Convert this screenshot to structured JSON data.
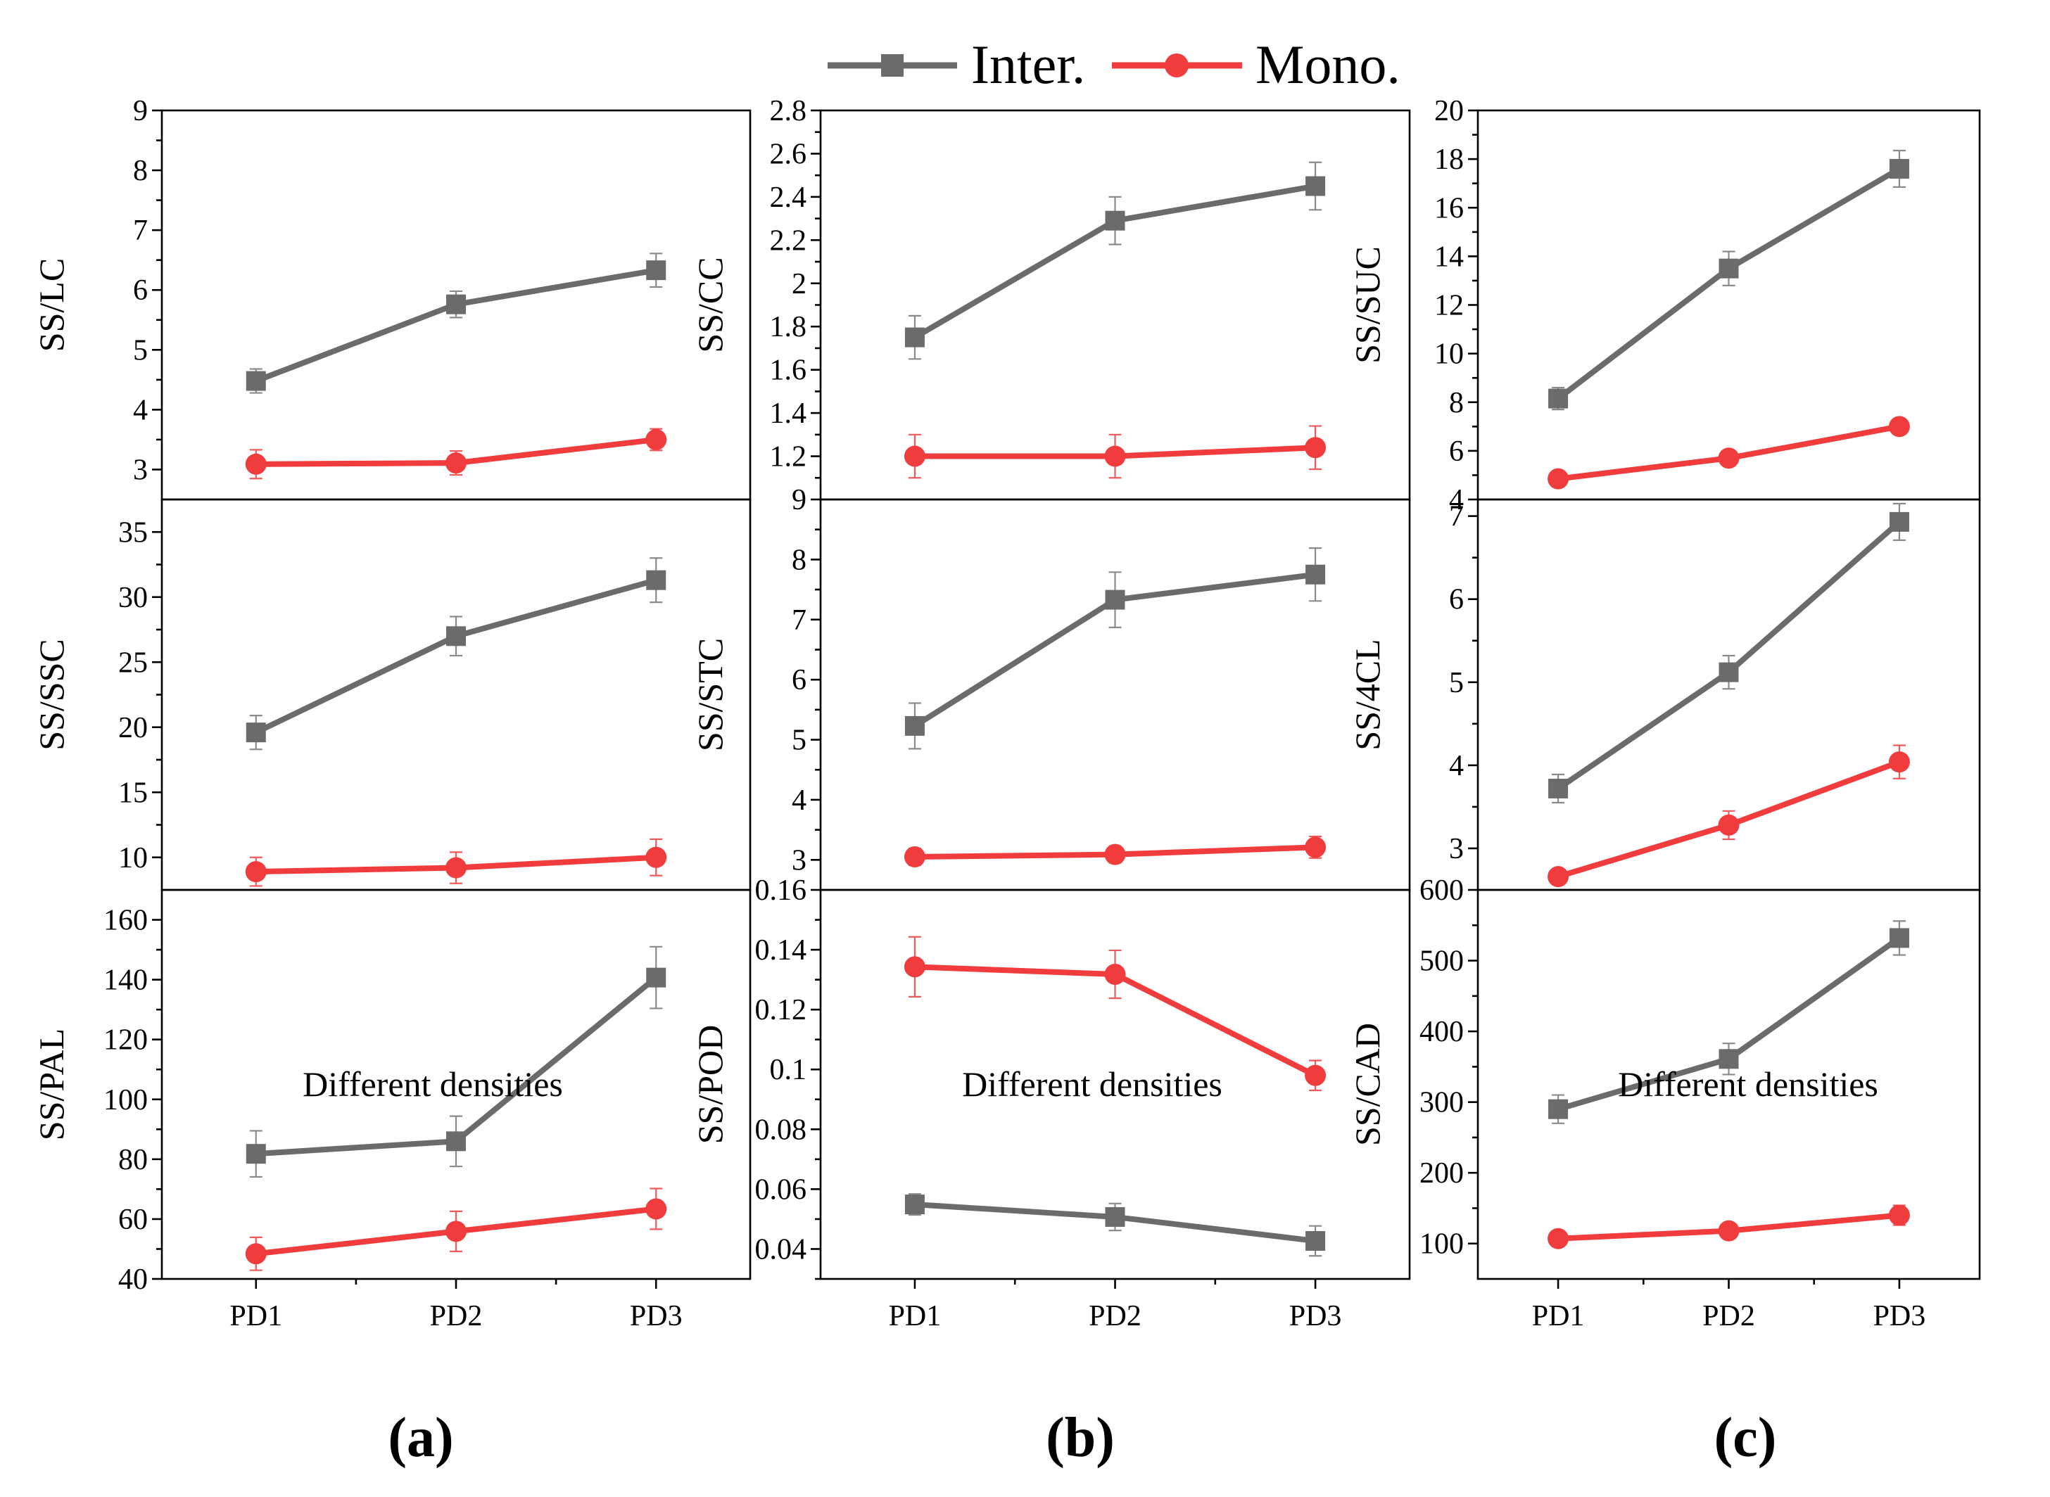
{
  "legend": {
    "series": [
      {
        "name": "Inter.",
        "color": "#6b6b6b",
        "marker": "square"
      },
      {
        "name": "Mono.",
        "color": "#f03c3c",
        "marker": "circle"
      }
    ]
  },
  "panel_labels": [
    "(a)",
    "(b)",
    "(c)"
  ],
  "x_axis_label": "Different densities",
  "chart_data": [
    {
      "type": "line",
      "column": 0,
      "row": 0,
      "ylabel": "SS/LC",
      "ylim": [
        2.5,
        9
      ],
      "yticks": [
        3,
        4,
        5,
        6,
        7,
        8,
        9
      ],
      "tick_labels": [
        "3",
        "4",
        "5",
        "6",
        "7",
        "8",
        "9"
      ],
      "categories": [
        "PD1",
        "PD2",
        "PD3"
      ],
      "series": [
        {
          "name": "Inter.",
          "values": [
            4.48,
            5.76,
            6.33
          ],
          "errors": [
            0.2,
            0.22,
            0.28
          ]
        },
        {
          "name": "Mono.",
          "values": [
            3.09,
            3.11,
            3.5
          ],
          "errors": [
            0.24,
            0.2,
            0.18
          ]
        }
      ]
    },
    {
      "type": "line",
      "column": 0,
      "row": 1,
      "ylabel": "SS/SSC",
      "ylim": [
        7.5,
        37.5
      ],
      "yticks": [
        10,
        15,
        20,
        25,
        30,
        35
      ],
      "tick_labels": [
        "10",
        "15",
        "20",
        "25",
        "30",
        "35"
      ],
      "categories": [
        "PD1",
        "PD2",
        "PD3"
      ],
      "series": [
        {
          "name": "Inter.",
          "values": [
            19.6,
            27.0,
            31.3
          ],
          "errors": [
            1.3,
            1.5,
            1.7
          ]
        },
        {
          "name": "Mono.",
          "values": [
            8.9,
            9.2,
            10.0
          ],
          "errors": [
            1.1,
            1.2,
            1.4
          ]
        }
      ]
    },
    {
      "type": "line",
      "column": 0,
      "row": 2,
      "ylabel": "SS/PAL",
      "ylim": [
        40,
        170
      ],
      "yticks": [
        40,
        60,
        80,
        100,
        120,
        140,
        160
      ],
      "tick_labels": [
        "40",
        "60",
        "80",
        "100",
        "120",
        "140",
        "160"
      ],
      "categories": [
        "PD1",
        "PD2",
        "PD3"
      ],
      "series": [
        {
          "name": "Inter.",
          "values": [
            81.8,
            86.0,
            140.7
          ],
          "errors": [
            7.7,
            8.4,
            10.3
          ]
        },
        {
          "name": "Mono.",
          "values": [
            48.4,
            55.9,
            63.4
          ],
          "errors": [
            5.5,
            6.7,
            6.8
          ]
        }
      ]
    },
    {
      "type": "line",
      "column": 1,
      "row": 0,
      "ylabel": "SS/CC",
      "ylim": [
        1.0,
        2.8
      ],
      "yticks": [
        1.2,
        1.4,
        1.6,
        1.8,
        2.0,
        2.2,
        2.4,
        2.6,
        2.8
      ],
      "tick_labels": [
        "1.2",
        "1.4",
        "1.6",
        "1.8",
        "2",
        "2.2",
        "2.4",
        "2.6",
        "2.8"
      ],
      "categories": [
        "PD1",
        "PD2",
        "PD3"
      ],
      "series": [
        {
          "name": "Inter.",
          "values": [
            1.75,
            2.29,
            2.45
          ],
          "errors": [
            0.1,
            0.11,
            0.11
          ]
        },
        {
          "name": "Mono.",
          "values": [
            1.2,
            1.2,
            1.24
          ],
          "errors": [
            0.1,
            0.1,
            0.1
          ]
        }
      ]
    },
    {
      "type": "line",
      "column": 1,
      "row": 1,
      "ylabel": "SS/STC",
      "ylim": [
        2.5,
        9
      ],
      "yticks": [
        3,
        4,
        5,
        6,
        7,
        8,
        9
      ],
      "tick_labels": [
        "3",
        "4",
        "5",
        "6",
        "7",
        "8",
        "9"
      ],
      "categories": [
        "PD1",
        "PD2",
        "PD3"
      ],
      "series": [
        {
          "name": "Inter.",
          "values": [
            5.23,
            7.33,
            7.75
          ],
          "errors": [
            0.38,
            0.46,
            0.44
          ]
        },
        {
          "name": "Mono.",
          "values": [
            3.05,
            3.09,
            3.21
          ],
          "errors": [
            0.14,
            0.14,
            0.18
          ]
        }
      ]
    },
    {
      "type": "line",
      "column": 1,
      "row": 2,
      "ylabel": "SS/POD",
      "ylim": [
        0.03,
        0.16
      ],
      "yticks": [
        0.04,
        0.06,
        0.08,
        0.1,
        0.12,
        0.14,
        0.16
      ],
      "tick_labels": [
        "0.04",
        "0.06",
        "0.08",
        "0.1",
        "0.12",
        "0.14",
        "0.16"
      ],
      "categories": [
        "PD1",
        "PD2",
        "PD3"
      ],
      "series": [
        {
          "name": "Inter.",
          "values": [
            0.0549,
            0.0507,
            0.0427
          ],
          "errors": [
            0.0035,
            0.0045,
            0.005
          ]
        },
        {
          "name": "Mono.",
          "values": [
            0.1343,
            0.1318,
            0.098
          ],
          "errors": [
            0.01,
            0.008,
            0.005
          ]
        }
      ]
    },
    {
      "type": "line",
      "column": 2,
      "row": 0,
      "ylabel": "SS/SUC",
      "ylim": [
        4,
        20
      ],
      "yticks": [
        4,
        6,
        8,
        10,
        12,
        14,
        16,
        18,
        20
      ],
      "tick_labels": [
        "4",
        "6",
        "8",
        "10",
        "12",
        "14",
        "16",
        "18",
        "20"
      ],
      "categories": [
        "PD1",
        "PD2",
        "PD3"
      ],
      "series": [
        {
          "name": "Inter.",
          "values": [
            8.15,
            13.5,
            17.6
          ],
          "errors": [
            0.45,
            0.7,
            0.75
          ]
        },
        {
          "name": "Mono.",
          "values": [
            4.85,
            5.7,
            7.0
          ],
          "errors": [
            0.15,
            0.25,
            0.15
          ]
        }
      ]
    },
    {
      "type": "line",
      "column": 2,
      "row": 1,
      "ylabel": "SS/4CL",
      "ylim": [
        2.5,
        7.2
      ],
      "yticks": [
        3,
        4,
        5,
        6,
        7
      ],
      "tick_labels": [
        "3",
        "4",
        "5",
        "6",
        "7"
      ],
      "categories": [
        "PD1",
        "PD2",
        "PD3"
      ],
      "series": [
        {
          "name": "Inter.",
          "values": [
            3.72,
            5.12,
            6.93
          ],
          "errors": [
            0.17,
            0.2,
            0.22
          ]
        },
        {
          "name": "Mono.",
          "values": [
            2.66,
            3.28,
            4.04
          ],
          "errors": [
            0.06,
            0.17,
            0.2
          ]
        }
      ]
    },
    {
      "type": "line",
      "column": 2,
      "row": 2,
      "ylabel": "SS/CAD",
      "ylim": [
        50,
        600
      ],
      "yticks": [
        100,
        200,
        300,
        400,
        500,
        600
      ],
      "tick_labels": [
        "100",
        "200",
        "300",
        "400",
        "500",
        "600"
      ],
      "categories": [
        "PD1",
        "PD2",
        "PD3"
      ],
      "series": [
        {
          "name": "Inter.",
          "values": [
            290,
            361,
            532
          ],
          "errors": [
            20,
            22,
            24
          ]
        },
        {
          "name": "Mono.",
          "values": [
            107,
            118,
            140
          ],
          "errors": [
            6,
            10,
            14
          ]
        }
      ]
    }
  ]
}
